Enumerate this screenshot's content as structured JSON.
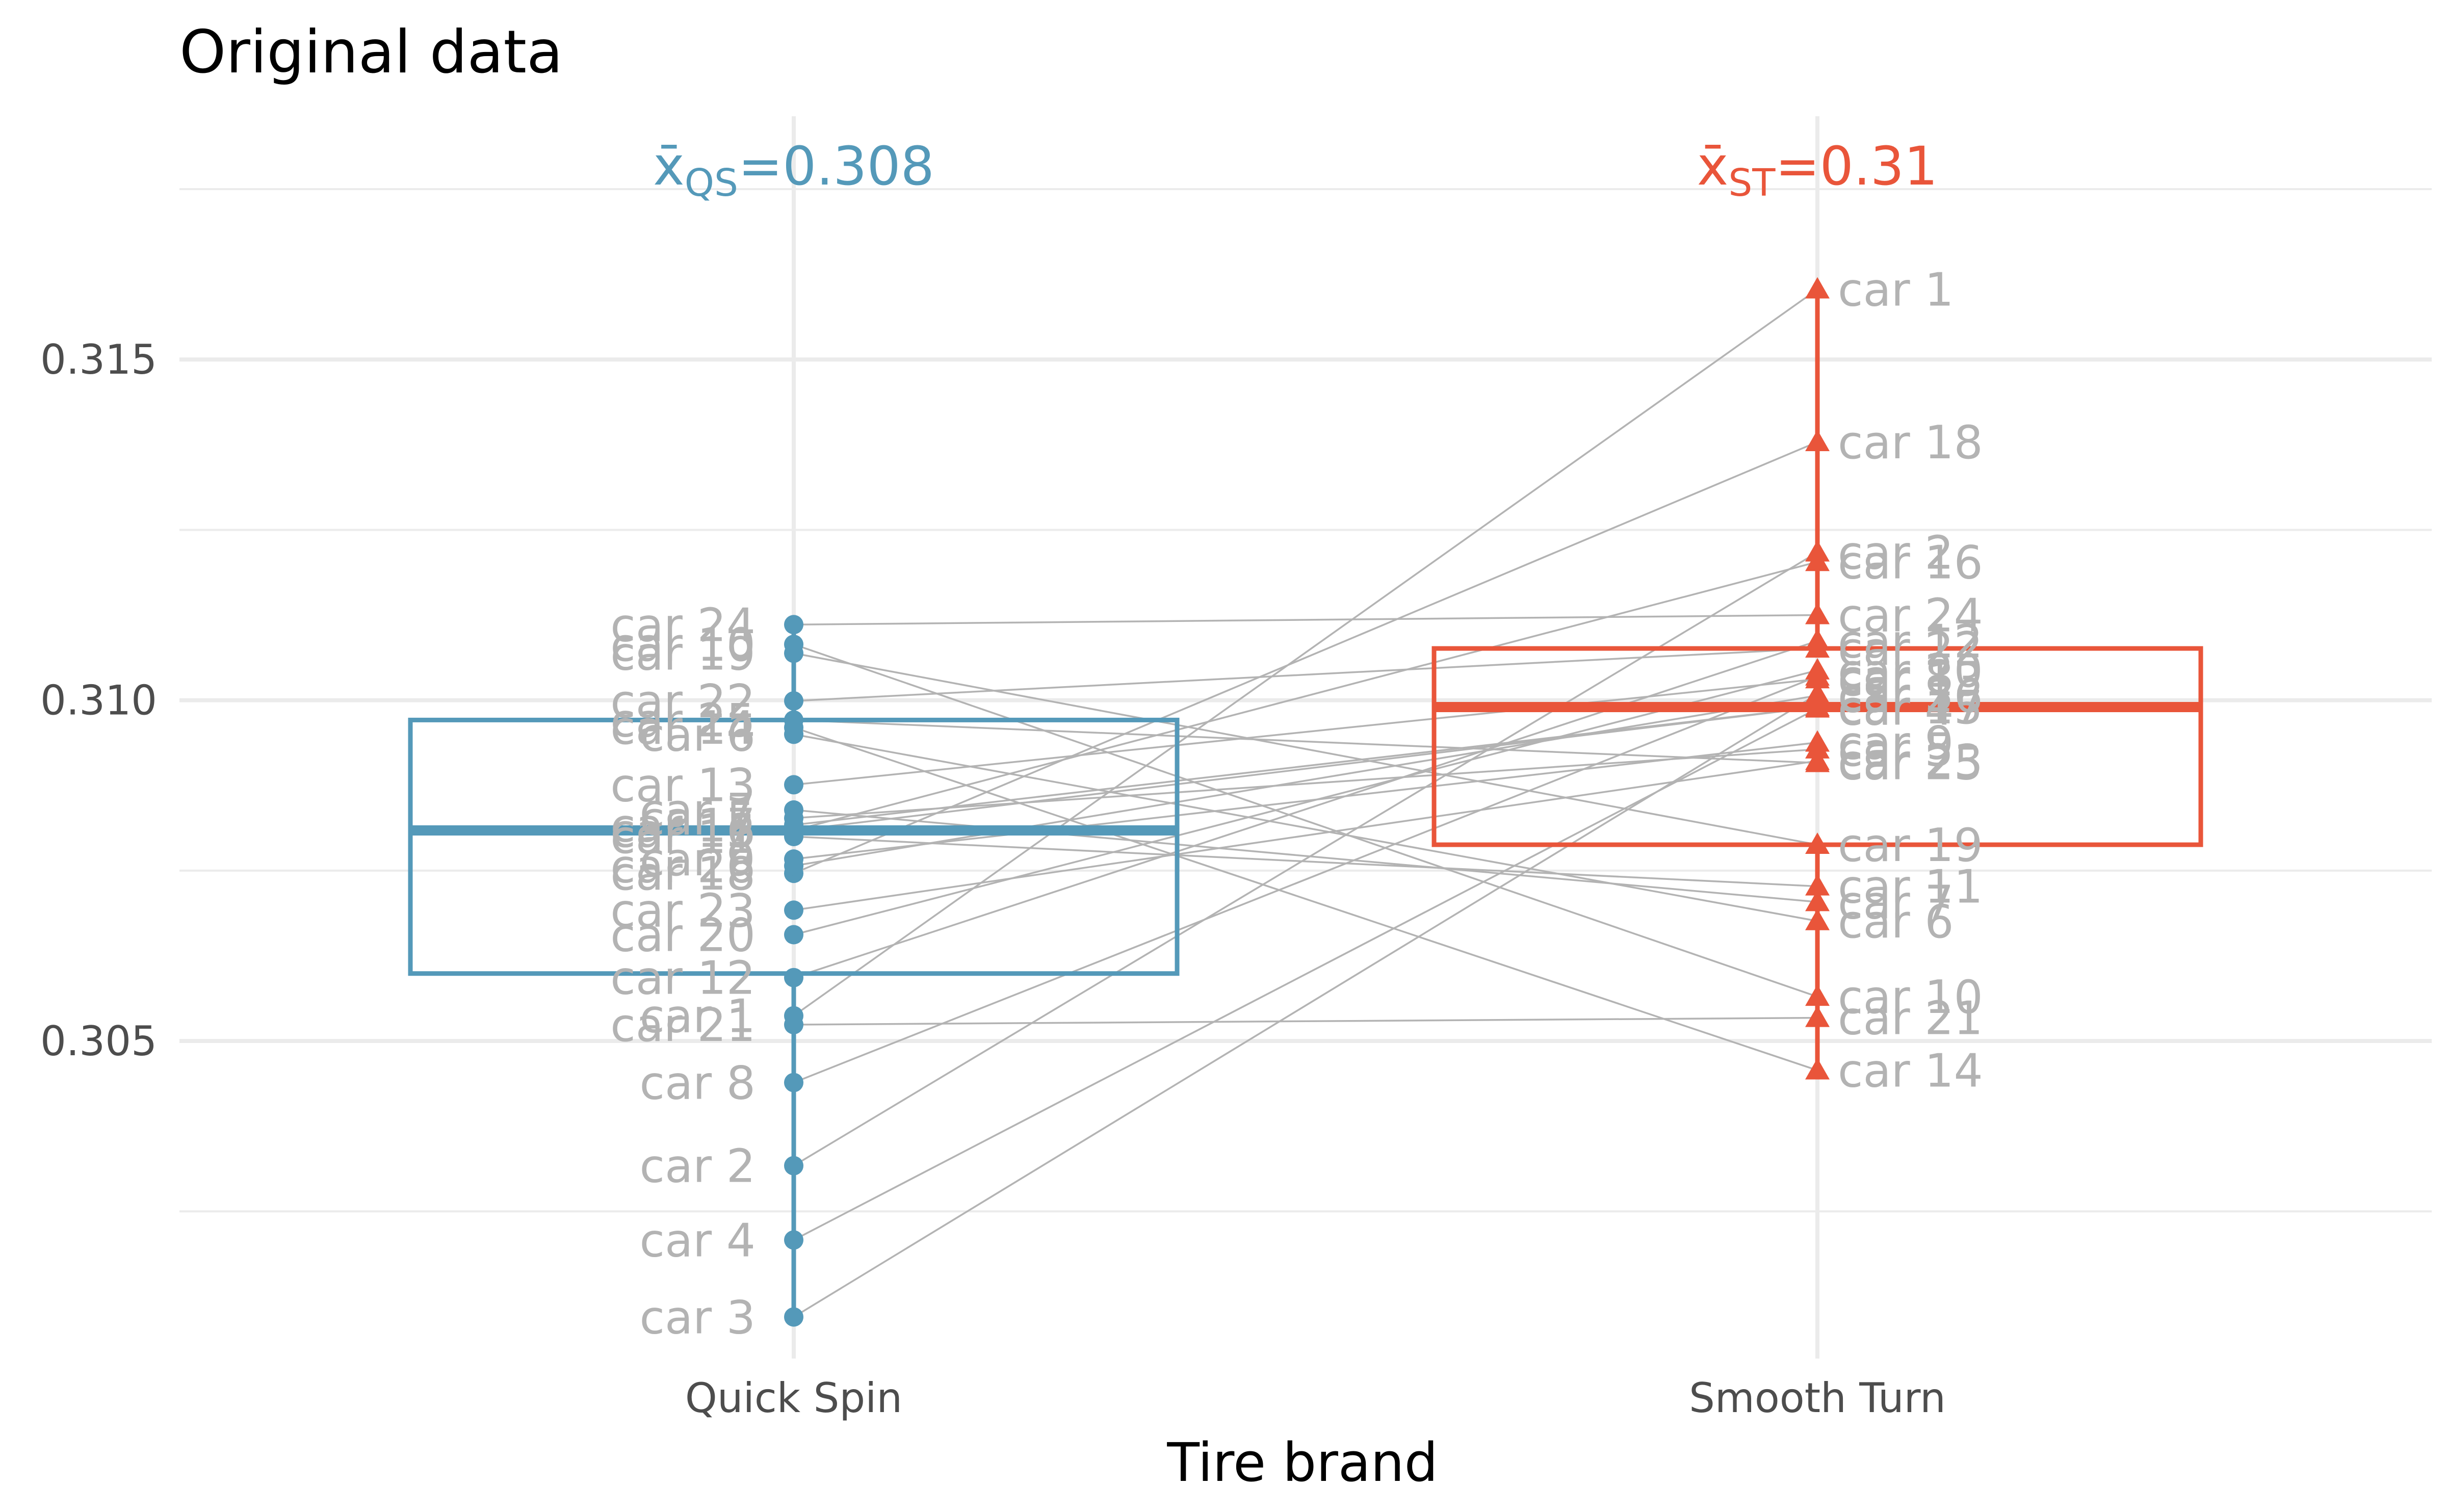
{
  "chart_data": {
    "type": "box",
    "title": "Original data",
    "xlabel": "Tire brand",
    "ylabel": "",
    "ylim": [
      0.30034,
      0.31857
    ],
    "y_ticks": [
      "0.305",
      "0.310",
      "0.315"
    ],
    "y_tick_values": [
      0.305,
      0.31,
      0.315
    ],
    "categories": [
      "Quick Spin",
      "Smooth Turn"
    ],
    "colors": {
      "Quick Spin": "#5499b9",
      "Smooth Turn": "#e9553a",
      "point_label": "#b3b3b3",
      "connector": "#b3b3b3",
      "grid": "#ebebeb"
    },
    "mean_labels": [
      {
        "group": "Quick Spin",
        "symbol": "x̄",
        "sub": "QS",
        "eq": "=",
        "value": "0.308"
      },
      {
        "group": "Smooth Turn",
        "symbol": "x̄",
        "sub": "ST",
        "eq": "=",
        "value": "0.31"
      }
    ],
    "boxes": [
      {
        "group": "Quick Spin",
        "q1": 0.30599,
        "median": 0.30809,
        "q3": 0.30971,
        "min": 0.30095,
        "max": 0.31111
      },
      {
        "group": "Smooth Turn",
        "q1": 0.30788,
        "median": 0.3099,
        "q3": 0.31076,
        "min": 0.30457,
        "max": 0.31603
      }
    ],
    "cars": [
      {
        "label": "car 1",
        "quick_spin": 0.30537,
        "smooth_turn": 0.31603
      },
      {
        "label": "car 2",
        "quick_spin": 0.30317,
        "smooth_turn": 0.31217
      },
      {
        "label": "car 3",
        "quick_spin": 0.30095,
        "smooth_turn": 0.31009
      },
      {
        "label": "car 4",
        "quick_spin": 0.30208,
        "smooth_turn": 0.30988
      },
      {
        "label": "car 5",
        "quick_spin": 0.30827,
        "smooth_turn": 0.30928
      },
      {
        "label": "car 6",
        "quick_spin": 0.3095,
        "smooth_turn": 0.30676
      },
      {
        "label": "car 7",
        "quick_spin": 0.30839,
        "smooth_turn": 0.30704
      },
      {
        "label": "car 8",
        "quick_spin": 0.30439,
        "smooth_turn": 0.31035
      },
      {
        "label": "car 9",
        "quick_spin": 0.30767,
        "smooth_turn": 0.30938
      },
      {
        "label": "car 10",
        "quick_spin": 0.31082,
        "smooth_turn": 0.30565
      },
      {
        "label": "car 11",
        "quick_spin": 0.308,
        "smooth_turn": 0.30727
      },
      {
        "label": "car 12",
        "quick_spin": 0.30593,
        "smooth_turn": 0.31087
      },
      {
        "label": "car 13",
        "quick_spin": 0.30876,
        "smooth_turn": 0.31031
      },
      {
        "label": "car 14",
        "quick_spin": 0.3096,
        "smooth_turn": 0.30457
      },
      {
        "label": "car 15",
        "quick_spin": 0.30809,
        "smooth_turn": 0.3099
      },
      {
        "label": "car 16",
        "quick_spin": 0.30809,
        "smooth_turn": 0.31203
      },
      {
        "label": "car 17",
        "quick_spin": 0.30817,
        "smooth_turn": 0.3099
      },
      {
        "label": "car 18",
        "quick_spin": 0.30746,
        "smooth_turn": 0.31379
      },
      {
        "label": "car 19",
        "quick_spin": 0.31069,
        "smooth_turn": 0.30788
      },
      {
        "label": "car 20",
        "quick_spin": 0.30656,
        "smooth_turn": 0.31044
      },
      {
        "label": "car 21",
        "quick_spin": 0.30524,
        "smooth_turn": 0.30534
      },
      {
        "label": "car 22",
        "quick_spin": 0.30999,
        "smooth_turn": 0.31076
      },
      {
        "label": "car 23",
        "quick_spin": 0.30692,
        "smooth_turn": 0.30911
      },
      {
        "label": "car 24",
        "quick_spin": 0.31111,
        "smooth_turn": 0.31125
      },
      {
        "label": "car 25",
        "quick_spin": 0.30971,
        "smooth_turn": 0.30908
      },
      {
        "label": "car 26",
        "quick_spin": 0.30757,
        "smooth_turn": 0.31007
      }
    ]
  }
}
